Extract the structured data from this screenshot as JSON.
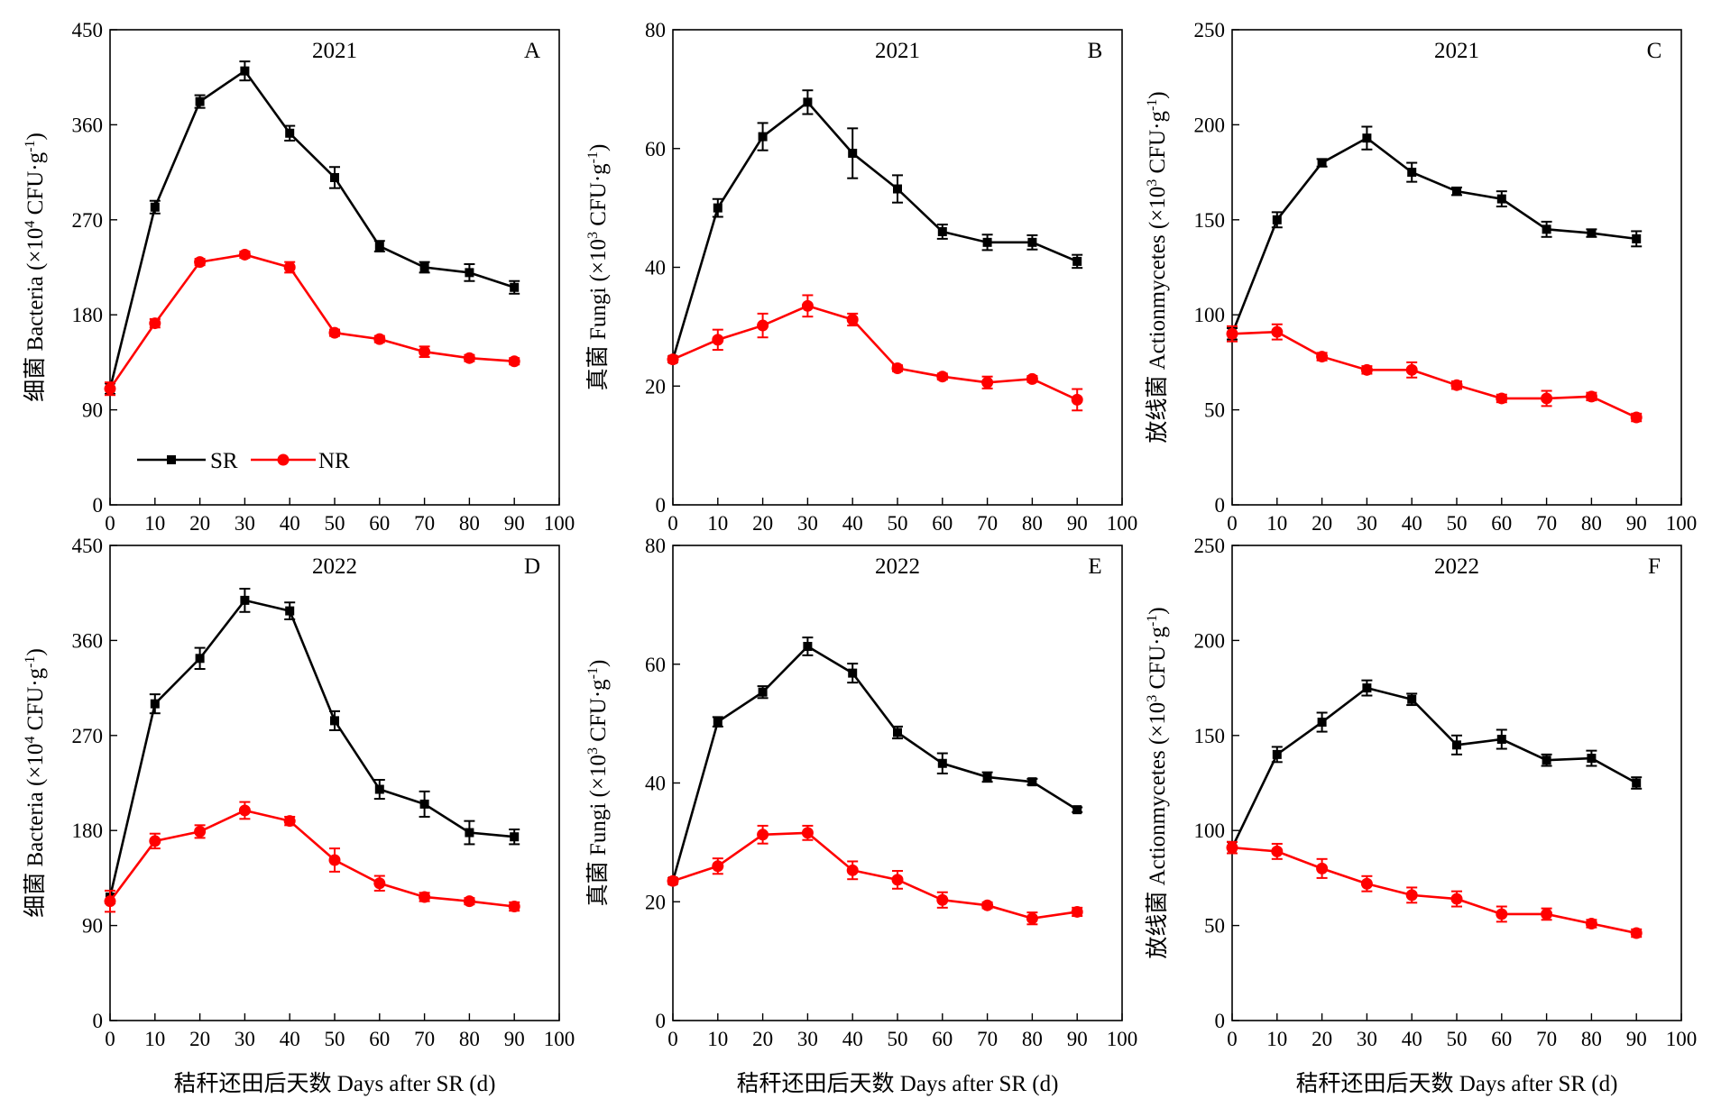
{
  "legend": [
    {
      "name": "SR",
      "color": "#000000",
      "marker": "square"
    },
    {
      "name": "NR",
      "color": "#ff0000",
      "marker": "circle"
    }
  ],
  "chart_data": [
    {
      "type": "line",
      "panel_label": "A",
      "year": "2021",
      "ylabel": "细菌 Bacteria (×10^4 CFU·g^-1)",
      "ylabel_parts": {
        "prefix": "细菌 Bacteria (×10",
        "exp1": "4",
        "mid": " CFU·g",
        "exp2": "-1",
        "suffix": ")"
      },
      "xlabel": "",
      "xlim": [
        0,
        100
      ],
      "xticks": [
        0,
        10,
        20,
        30,
        40,
        50,
        60,
        70,
        80,
        90,
        100
      ],
      "ylim": [
        0,
        450
      ],
      "yticks": [
        0,
        90,
        180,
        270,
        360,
        450
      ],
      "x": [
        0,
        10,
        20,
        30,
        40,
        50,
        60,
        70,
        80,
        90
      ],
      "series": [
        {
          "name": "SR",
          "color": "#000000",
          "marker": "square",
          "values": [
            110,
            282,
            382,
            411,
            352,
            310,
            245,
            225,
            220,
            206
          ],
          "errors": [
            5,
            6,
            6,
            9,
            7,
            10,
            5,
            5,
            8,
            6
          ]
        },
        {
          "name": "NR",
          "color": "#ff0000",
          "marker": "circle",
          "values": [
            110,
            172,
            230,
            237,
            225,
            163,
            157,
            145,
            139,
            136
          ],
          "errors": [
            6,
            4,
            3,
            3,
            5,
            3,
            3,
            5,
            3,
            3
          ]
        }
      ]
    },
    {
      "type": "line",
      "panel_label": "B",
      "year": "2021",
      "ylabel": "真菌 Fungi (×10^3 CFU·g^-1)",
      "ylabel_parts": {
        "prefix": "真菌 Fungi (×10",
        "exp1": "3",
        "mid": " CFU·g",
        "exp2": "-1",
        "suffix": ")"
      },
      "xlabel": "",
      "xlim": [
        0,
        100
      ],
      "xticks": [
        0,
        10,
        20,
        30,
        40,
        50,
        60,
        70,
        80,
        90,
        100
      ],
      "ylim": [
        0,
        80
      ],
      "yticks": [
        0,
        20,
        40,
        60,
        80
      ],
      "x": [
        0,
        10,
        20,
        30,
        40,
        50,
        60,
        70,
        80,
        90
      ],
      "series": [
        {
          "name": "SR",
          "color": "#000000",
          "marker": "square",
          "values": [
            24.5,
            50,
            62,
            67.8,
            59.2,
            53.2,
            46,
            44.2,
            44.2,
            41
          ],
          "errors": [
            0.5,
            1.5,
            2.3,
            2,
            4.2,
            2.3,
            1.2,
            1.3,
            1.2,
            1.1
          ]
        },
        {
          "name": "NR",
          "color": "#ff0000",
          "marker": "circle",
          "values": [
            24.5,
            27.8,
            30.2,
            33.5,
            31.2,
            23,
            21.6,
            20.6,
            21.2,
            17.7
          ],
          "errors": [
            0.5,
            1.7,
            2,
            1.8,
            1,
            0.5,
            0.5,
            1,
            0.5,
            1.8
          ]
        }
      ]
    },
    {
      "type": "line",
      "panel_label": "C",
      "year": "2021",
      "ylabel": "放线菌 Actionmycetes (×10^3 CFU·g^-1)",
      "ylabel_parts": {
        "prefix": "放线菌 Actionmycetes (×10",
        "exp1": "3",
        "mid": " CFU·g",
        "exp2": "-1",
        "suffix": ")"
      },
      "xlabel": "",
      "xlim": [
        0,
        100
      ],
      "xticks": [
        0,
        10,
        20,
        30,
        40,
        50,
        60,
        70,
        80,
        90,
        100
      ],
      "ylim": [
        0,
        250
      ],
      "yticks": [
        0,
        50,
        100,
        150,
        200,
        250
      ],
      "x": [
        0,
        10,
        20,
        30,
        40,
        50,
        60,
        70,
        80,
        90
      ],
      "series": [
        {
          "name": "SR",
          "color": "#000000",
          "marker": "square",
          "values": [
            90,
            150,
            180,
            193,
            175,
            165,
            161,
            145,
            143,
            140
          ],
          "errors": [
            3,
            4,
            2,
            6,
            5,
            2,
            4,
            4,
            2,
            4
          ]
        },
        {
          "name": "NR",
          "color": "#ff0000",
          "marker": "circle",
          "values": [
            90,
            91,
            78,
            71,
            71,
            63,
            56,
            56,
            57,
            46
          ],
          "errors": [
            4,
            4,
            2,
            2,
            4,
            2,
            2,
            4,
            2,
            2
          ]
        }
      ]
    },
    {
      "type": "line",
      "panel_label": "D",
      "year": "2022",
      "ylabel": "细菌 Bacteria (×10^4 CFU·g^-1)",
      "ylabel_parts": {
        "prefix": "细菌 Bacteria (×10",
        "exp1": "4",
        "mid": " CFU·g",
        "exp2": "-1",
        "suffix": ")"
      },
      "xlabel": "秸秆还田后天数 Days after SR (d)",
      "xlim": [
        0,
        100
      ],
      "xticks": [
        0,
        10,
        20,
        30,
        40,
        50,
        60,
        70,
        80,
        90,
        100
      ],
      "ylim": [
        0,
        450
      ],
      "yticks": [
        0,
        90,
        180,
        270,
        360,
        450
      ],
      "x": [
        0,
        10,
        20,
        30,
        40,
        50,
        60,
        70,
        80,
        90
      ],
      "series": [
        {
          "name": "SR",
          "color": "#000000",
          "marker": "square",
          "values": [
            117,
            300,
            343,
            398,
            388,
            284,
            219,
            205,
            178,
            174
          ],
          "errors": [
            6,
            9,
            10,
            11,
            8,
            9,
            9,
            12,
            11,
            7
          ]
        },
        {
          "name": "NR",
          "color": "#ff0000",
          "marker": "circle",
          "values": [
            113,
            170,
            179,
            199,
            189,
            152,
            130,
            117,
            113,
            108
          ],
          "errors": [
            10,
            7,
            6,
            8,
            4,
            11,
            7,
            4,
            3,
            4
          ]
        }
      ]
    },
    {
      "type": "line",
      "panel_label": "E",
      "year": "2022",
      "ylabel": "真菌 Fungi (×10^3 CFU·g^-1)",
      "ylabel_parts": {
        "prefix": "真菌 Fungi (×10",
        "exp1": "3",
        "mid": " CFU·g",
        "exp2": "-1",
        "suffix": ")"
      },
      "xlabel": "秸秆还田后天数 Days after SR (d)",
      "xlim": [
        0,
        100
      ],
      "xticks": [
        0,
        10,
        20,
        30,
        40,
        50,
        60,
        70,
        80,
        90,
        100
      ],
      "ylim": [
        0,
        80
      ],
      "yticks": [
        0,
        20,
        40,
        60,
        80
      ],
      "x": [
        0,
        10,
        20,
        30,
        40,
        50,
        60,
        70,
        80,
        90
      ],
      "series": [
        {
          "name": "SR",
          "color": "#000000",
          "marker": "square",
          "values": [
            23.5,
            50.3,
            55.3,
            63,
            58.5,
            48.5,
            43.3,
            41,
            40.2,
            35.5
          ],
          "errors": [
            0.5,
            0.8,
            1,
            1.5,
            1.6,
            1,
            1.7,
            0.8,
            0.5,
            0.4
          ]
        },
        {
          "name": "NR",
          "color": "#ff0000",
          "marker": "circle",
          "values": [
            23.5,
            26,
            31.3,
            31.6,
            25.3,
            23.7,
            20.3,
            19.4,
            17.2,
            18.3
          ],
          "errors": [
            0.5,
            1.3,
            1.5,
            1.2,
            1.5,
            1.5,
            1.3,
            0.5,
            1,
            0.7
          ]
        }
      ]
    },
    {
      "type": "line",
      "panel_label": "F",
      "year": "2022",
      "ylabel": "放线菌 Actionmycetes (×10^3 CFU·g^-1)",
      "ylabel_parts": {
        "prefix": "放线菌 Actionmycetes (×10",
        "exp1": "3",
        "mid": " CFU·g",
        "exp2": "-1",
        "suffix": ")"
      },
      "xlabel": "秸秆还田后天数 Days after SR (d)",
      "xlim": [
        0,
        100
      ],
      "xticks": [
        0,
        10,
        20,
        30,
        40,
        50,
        60,
        70,
        80,
        90,
        100
      ],
      "ylim": [
        0,
        250
      ],
      "yticks": [
        0,
        50,
        100,
        150,
        200,
        250
      ],
      "x": [
        0,
        10,
        20,
        30,
        40,
        50,
        60,
        70,
        80,
        90
      ],
      "series": [
        {
          "name": "SR",
          "color": "#000000",
          "marker": "square",
          "values": [
            91,
            140,
            157,
            175,
            169,
            145,
            148,
            137,
            138,
            125
          ],
          "errors": [
            3,
            4,
            5,
            4,
            3,
            5,
            5,
            3,
            4,
            3
          ]
        },
        {
          "name": "NR",
          "color": "#ff0000",
          "marker": "circle",
          "values": [
            91,
            89,
            80,
            72,
            66,
            64,
            56,
            56,
            51,
            46
          ],
          "errors": [
            3,
            4,
            5,
            4,
            4,
            4,
            4,
            3,
            2,
            2
          ]
        }
      ]
    }
  ]
}
